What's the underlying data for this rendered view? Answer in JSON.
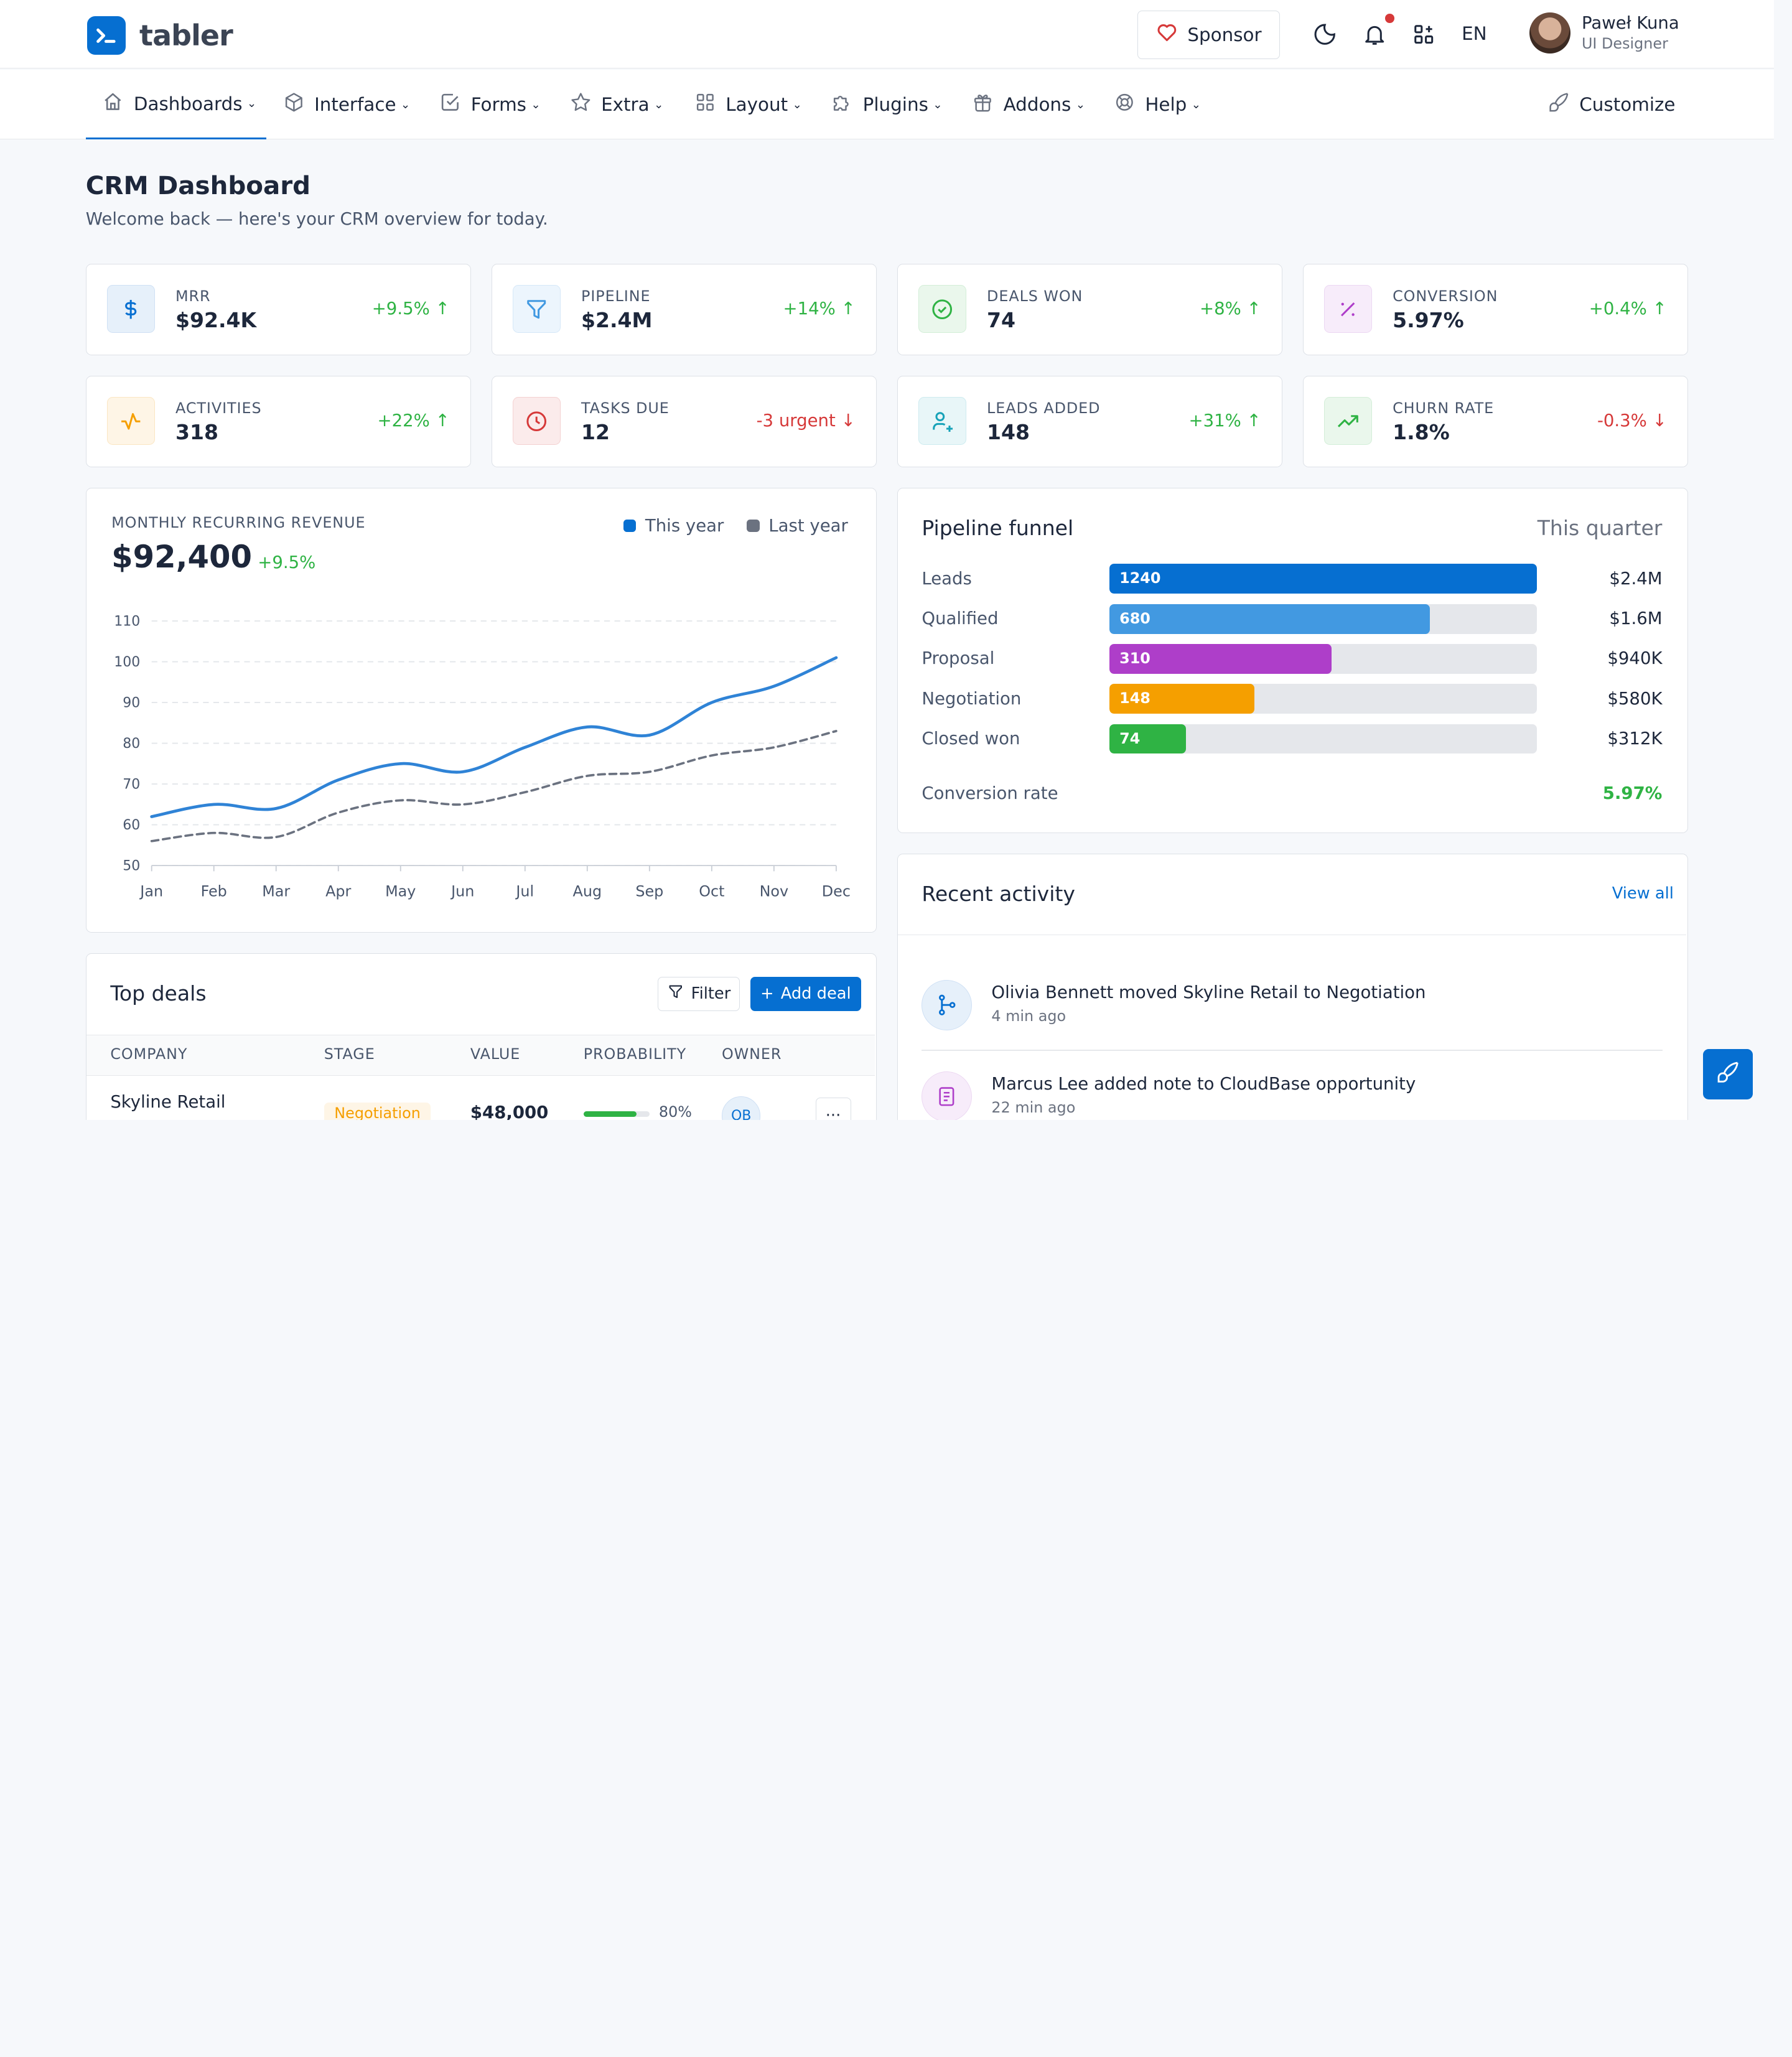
{
  "app": {
    "name": "tabler"
  },
  "header": {
    "sponsor_label": "Sponsor",
    "language": "EN",
    "user_name": "Paweł Kuna",
    "user_role": "UI Designer"
  },
  "nav": [
    {
      "label": "Dashboards",
      "icon": "home-icon"
    },
    {
      "label": "Interface",
      "icon": "package-icon"
    },
    {
      "label": "Forms",
      "icon": "checkbox-icon"
    },
    {
      "label": "Extra",
      "icon": "star-icon"
    },
    {
      "label": "Layout",
      "icon": "layout-grid-icon"
    },
    {
      "label": "Plugins",
      "icon": "puzzle-icon"
    },
    {
      "label": "Addons",
      "icon": "gift-icon"
    },
    {
      "label": "Help",
      "icon": "lifebuoy-icon"
    }
  ],
  "customize_label": "Customize",
  "page": {
    "title": "CRM Dashboard",
    "subtitle": "Welcome back — here's your CRM overview for today."
  },
  "kpis": [
    {
      "label": "MRR",
      "value": "$92.4K",
      "delta": "+9.5%",
      "icon": "dollar-icon",
      "accent": "#066fd1"
    },
    {
      "label": "PIPELINE",
      "value": "$2.4M",
      "delta": "+14%",
      "icon": "filter-icon",
      "accent": "#4299e1"
    },
    {
      "label": "DEALS WON",
      "value": "74",
      "delta": "+8%",
      "icon": "circle-check-icon",
      "accent": "#2fb344"
    },
    {
      "label": "CONVERSION",
      "value": "5.97%",
      "delta": "+0.4%",
      "icon": "percentage-icon",
      "accent": "#ae3ec9"
    },
    {
      "label": "ACTIVITIES",
      "value": "318",
      "delta": "+22%",
      "icon": "activity-icon",
      "accent": "#f59f00"
    },
    {
      "label": "TASKS DUE",
      "value": "12",
      "delta": "-3 urgent",
      "icon": "clock-icon",
      "accent": "#d63939"
    },
    {
      "label": "LEADS ADDED",
      "value": "148",
      "delta": "+31%",
      "icon": "user-plus-icon",
      "accent": "#17a2b8"
    },
    {
      "label": "CHURN RATE",
      "value": "1.8%",
      "delta": "-0.3%",
      "icon": "trending-up-icon",
      "accent": "#2fb344"
    }
  ],
  "revenue": {
    "label": "MONTHLY RECURRING REVENUE",
    "value": "$92,400",
    "delta": "+9.5%"
  },
  "chart_data": {
    "type": "line",
    "categories": [
      "Jan",
      "Feb",
      "Mar",
      "Apr",
      "May",
      "Jun",
      "Jul",
      "Aug",
      "Sep",
      "Oct",
      "Nov",
      "Dec"
    ],
    "series": [
      {
        "name": "This year",
        "values": [
          62,
          65,
          64,
          71,
          75,
          73,
          79,
          84,
          82,
          90,
          94,
          101
        ],
        "color": "#066fd1"
      },
      {
        "name": "Last year",
        "values": [
          56,
          58,
          57,
          63,
          66,
          65,
          68,
          72,
          73,
          77,
          79,
          83
        ],
        "color": "#6b7280"
      }
    ],
    "yticks": [
      50,
      60,
      70,
      80,
      90,
      100,
      110
    ],
    "ylim": [
      50,
      110
    ],
    "grid": true,
    "legend": "top-right"
  },
  "funnel": {
    "title": "Pipeline funnel",
    "period": "This quarter",
    "stages": [
      {
        "label": "Leads",
        "count": "1240",
        "fraction": 1.0,
        "amount": "$2.4M",
        "color": "#066fd1"
      },
      {
        "label": "Qualified",
        "count": "680",
        "fraction": 0.75,
        "amount": "$1.6M",
        "color": "#4299e1"
      },
      {
        "label": "Proposal",
        "count": "310",
        "fraction": 0.52,
        "amount": "$940K",
        "color": "#ae3ec9"
      },
      {
        "label": "Negotiation",
        "count": "148",
        "fraction": 0.34,
        "amount": "$580K",
        "color": "#f59f00"
      },
      {
        "label": "Closed won",
        "count": "74",
        "fraction": 0.18,
        "amount": "$312K",
        "color": "#2fb344"
      }
    ],
    "conversion_label": "Conversion rate",
    "conversion_value": "5.97%"
  },
  "deals": {
    "title": "Top deals",
    "filter_label": "Filter",
    "add_label": "Add deal",
    "columns": [
      "COMPANY",
      "STAGE",
      "VALUE",
      "PROBABILITY",
      "OWNER"
    ],
    "rows": [
      {
        "company": "Skyline Retail",
        "stage": "Negotiation",
        "value": "$48,000",
        "probability": "80%",
        "probability_fraction": 0.8,
        "owner": "OB"
      }
    ]
  },
  "activity": {
    "title": "Recent activity",
    "view_all": "View all",
    "items": [
      {
        "text": "Olivia Bennett moved Skyline Retail to Negotiation",
        "time": "4 min ago",
        "icon": "git-branch-icon"
      },
      {
        "text": "Marcus Lee added note to CloudBase opportunity",
        "time": "22 min ago",
        "icon": "note-icon"
      }
    ]
  }
}
